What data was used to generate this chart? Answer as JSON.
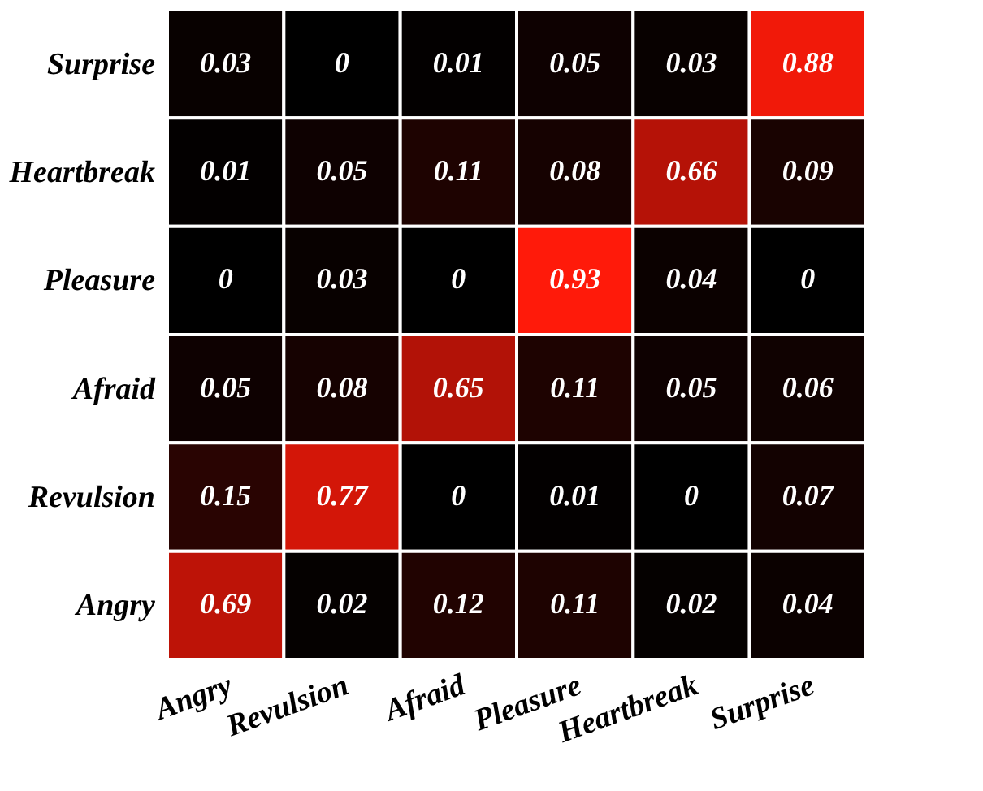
{
  "chart_data": {
    "type": "heatmap",
    "categories": [
      "Angry",
      "Revulsion",
      "Afraid",
      "Pleasure",
      "Heartbreak",
      "Surprise"
    ],
    "y_categories": [
      "Surprise",
      "Heartbreak",
      "Pleasure",
      "Afraid",
      "Revulsion",
      "Angry"
    ],
    "cells": [
      [
        0.03,
        0,
        0.01,
        0.05,
        0.03,
        0.88
      ],
      [
        0.01,
        0.05,
        0.11,
        0.08,
        0.66,
        0.09
      ],
      [
        0,
        0.03,
        0,
        0.93,
        0.04,
        0
      ],
      [
        0.05,
        0.08,
        0.65,
        0.11,
        0.05,
        0.06
      ],
      [
        0.15,
        0.77,
        0,
        0.01,
        0,
        0.07
      ],
      [
        0.69,
        0.02,
        0.12,
        0.11,
        0.02,
        0.04
      ]
    ],
    "data_labels": true
  }
}
